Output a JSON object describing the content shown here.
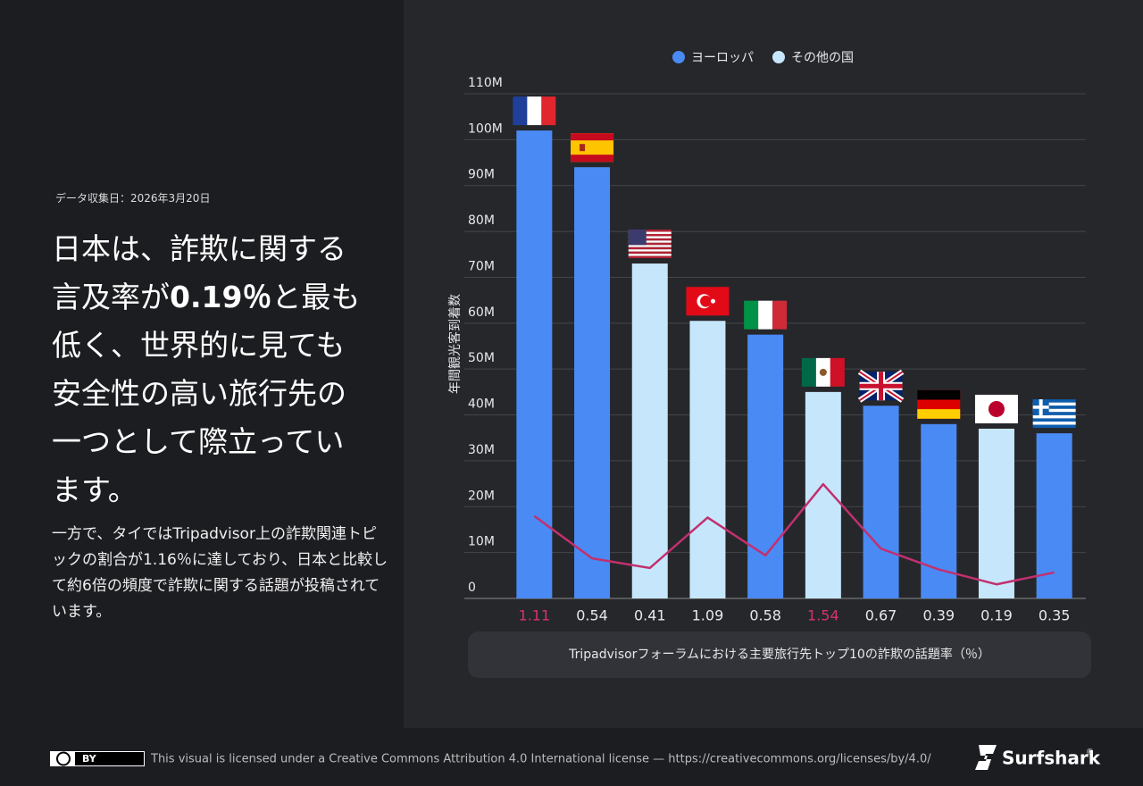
{
  "header": {
    "date": "データ収集日：2026年3月20日",
    "headline": [
      "日本は、詐欺に関する言及率が",
      "0.19％",
      "と最も低く、世界的に見ても安全性の高い旅行先の一つとして際立っています。"
    ],
    "body": "一方で、タイではTripadvisor上の詐欺関連トピックの割合が1.16％に達しており、日本と比較して約6倍の頻度で詐欺に関する話題が投稿されています。"
  },
  "chart_data": {
    "type": "bar",
    "y_label": "年間観光客到着数",
    "x_label": "Tripadvisorフォーラムにおける主要旅行先トップ10の詐欺の話題率（％）",
    "categories": [
      null,
      null,
      null,
      null,
      null,
      null,
      null,
      null,
      null,
      null
    ],
    "series": [
      {
        "name": "ヨーロッパ",
        "color": "#4a8af4",
        "values": [
          102000000,
          94000000,
          null,
          null,
          57500000,
          null,
          42000000,
          38000000,
          null,
          36000000
        ]
      },
      {
        "name": "その他の国",
        "color": "#c6e7fb",
        "values": [
          null,
          null,
          73000000,
          60500000,
          null,
          45000000,
          null,
          null,
          37000000,
          null
        ]
      }
    ],
    "line": {
      "color": "#c2306f",
      "axis": "y2",
      "values": [
        1.11,
        0.54,
        0.41,
        1.09,
        0.58,
        1.54,
        0.67,
        0.39,
        0.19,
        0.35
      ],
      "label_colors": [
        "#d6336c",
        "#e8e8ea",
        "#e8e8ea",
        "#e8e8ea",
        "#e8e8ea",
        "#d6336c",
        "#e8e8ea",
        "#e8e8ea",
        "#e8e8ea",
        "#e8e8ea"
      ]
    },
    "ylim": [
      0,
      110000000
    ],
    "y2lim": [
      0,
      6.8
    ],
    "yticks": [
      0,
      {
        "value": 10000000,
        "label": "10M"
      },
      {
        "value": 20000000,
        "label": "20M"
      },
      {
        "value": 30000000,
        "label": "30M"
      },
      {
        "value": 40000000,
        "label": "40M"
      },
      {
        "value": 50000000,
        "label": "50M"
      },
      {
        "value": 60000000,
        "label": "60M"
      },
      {
        "value": 70000000,
        "label": "70M"
      },
      {
        "value": 80000000,
        "label": "80M"
      },
      {
        "value": 90000000,
        "label": "90M"
      },
      {
        "value": 100000000,
        "label": "100M"
      },
      {
        "value": 110000000,
        "label": "110M"
      }
    ],
    "grid": true,
    "legend": "top"
  },
  "footer": {
    "badge": "BY",
    "license": "This visual is licensed under a Creative Commons Attribution 4.0 International license — https://creativecommons.org/licenses/by/4.0/",
    "brand": "Surfshark",
    "mark": "®"
  }
}
